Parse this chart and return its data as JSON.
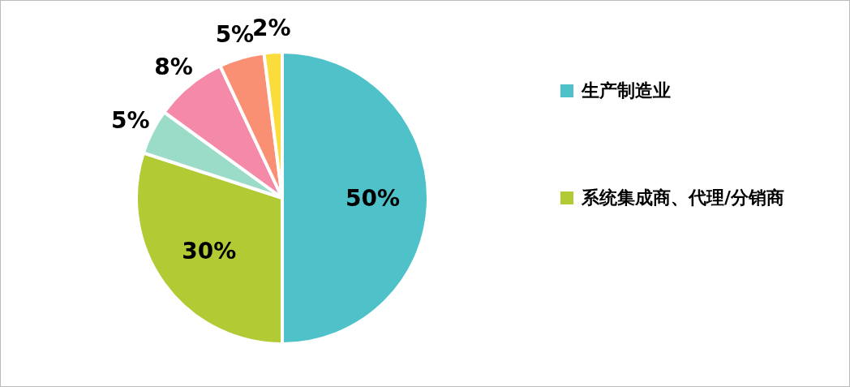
{
  "chart_data": {
    "type": "pie",
    "categories": [
      "生产制造业",
      "系统集成商、代理/分销商",
      null,
      null,
      null,
      null
    ],
    "values": [
      50,
      30,
      5,
      8,
      5,
      2
    ],
    "colors": [
      "#4fc1c9",
      "#b2cb35",
      "#9adcc8",
      "#f589a8",
      "#f99073",
      "#fadd3c"
    ],
    "value_labels": [
      "50%",
      "30%",
      "5%",
      "8%",
      "5%",
      "2%"
    ],
    "legend": "right"
  }
}
